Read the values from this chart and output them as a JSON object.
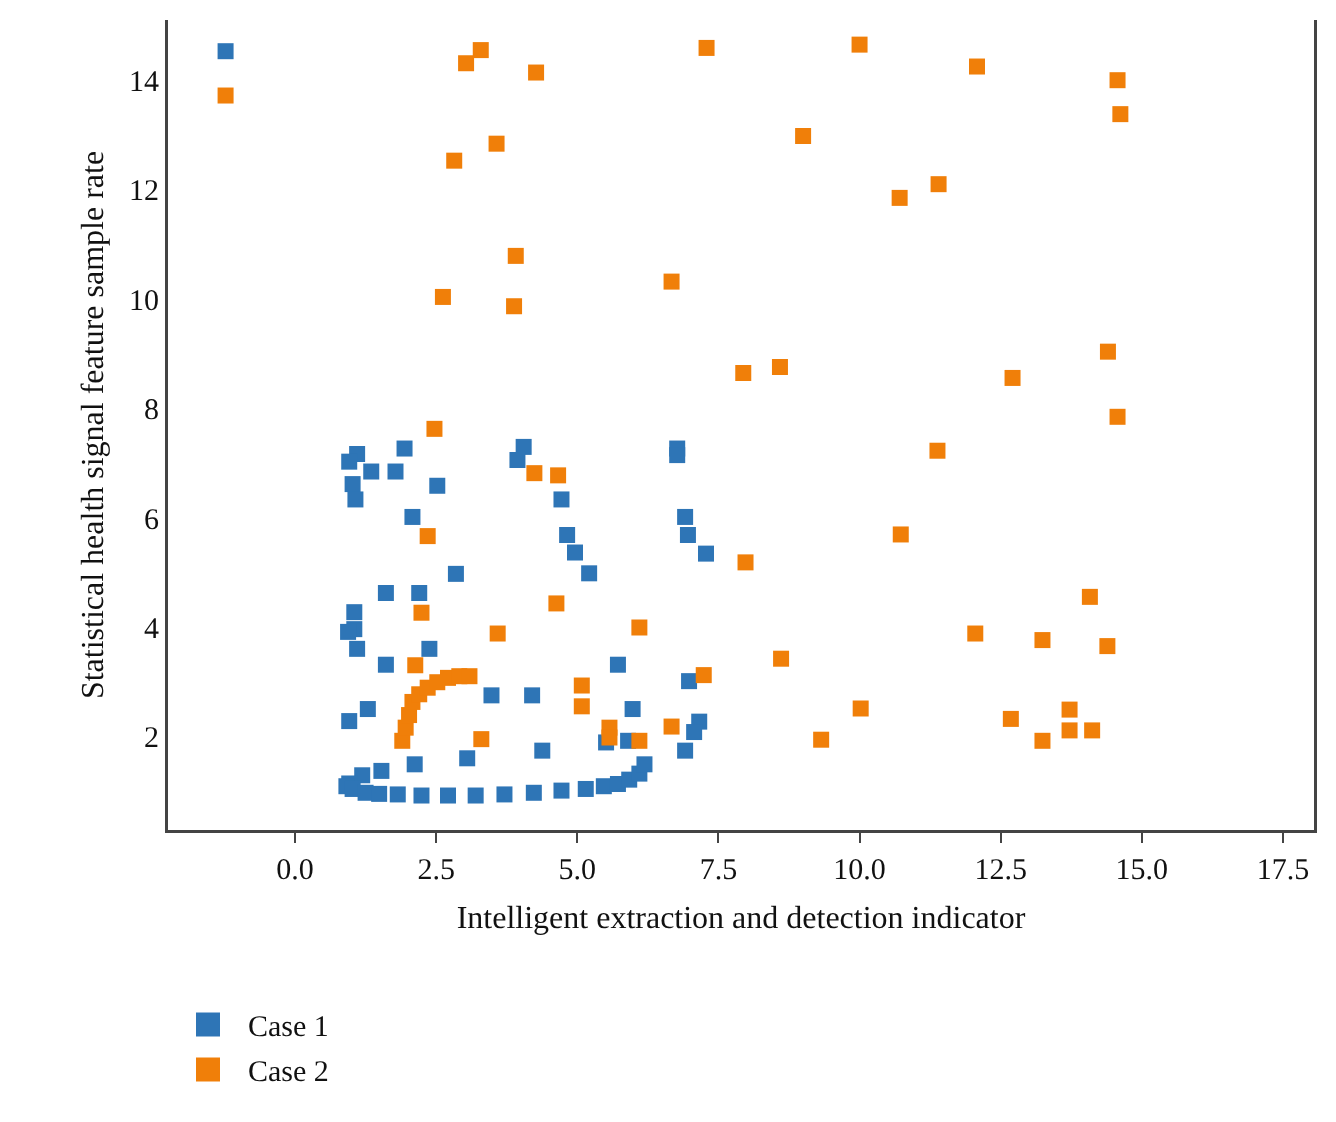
{
  "chart_data": {
    "type": "scatter",
    "xlabel": "Intelligent extraction and detection indicator",
    "ylabel": "Statistical health signal feature sample rate",
    "xlim": [
      -2.25,
      18.05
    ],
    "ylim": [
      0.3,
      15.1
    ],
    "xticks": [
      {
        "value": 0,
        "label": "0.0"
      },
      {
        "value": 2.5,
        "label": "2.5"
      },
      {
        "value": 5,
        "label": "5.0"
      },
      {
        "value": 7.5,
        "label": "7.5"
      },
      {
        "value": 10,
        "label": "10.0"
      },
      {
        "value": 12.5,
        "label": "12.5"
      },
      {
        "value": 15,
        "label": "15.0"
      },
      {
        "value": 17.5,
        "label": "17.5"
      }
    ],
    "yticks": [
      2,
      4,
      6,
      8,
      10,
      12,
      14
    ],
    "grid": false,
    "legend": "bottom left",
    "marker": "square",
    "series": [
      {
        "name": "Case 1",
        "color": "#2e75b6",
        "x": [
          -1.23,
          1.1,
          0.96,
          1.35,
          1.78,
          1.94,
          1.02,
          1.07,
          2.52,
          2.08,
          2.85,
          1.61,
          2.2,
          1.05,
          1.05,
          0.94,
          1.1,
          2.38,
          1.61,
          3.48,
          4.2,
          1.29,
          0.96,
          4.38,
          3.05,
          2.12,
          1.53,
          1.19,
          0.96,
          0.91,
          1.02,
          1.25,
          1.49,
          1.82,
          2.24,
          2.71,
          3.2,
          3.71,
          4.23,
          4.72,
          5.15,
          5.47,
          5.72,
          5.92,
          6.1,
          6.19,
          4.05,
          3.94,
          4.72,
          4.82,
          4.96,
          5.21,
          5.72,
          5.98,
          5.51,
          5.9,
          6.77,
          6.77,
          6.91,
          6.96,
          7.28,
          6.98,
          7.16,
          7.07,
          6.91
        ],
        "values": [
          14.53,
          7.17,
          7.03,
          6.85,
          6.85,
          7.27,
          6.62,
          6.34,
          6.59,
          6.02,
          4.98,
          4.63,
          4.63,
          4.28,
          3.97,
          3.92,
          3.61,
          3.61,
          3.32,
          2.76,
          2.76,
          2.51,
          2.29,
          1.75,
          1.61,
          1.5,
          1.38,
          1.3,
          1.15,
          1.1,
          1.05,
          0.98,
          0.96,
          0.95,
          0.93,
          0.93,
          0.93,
          0.95,
          0.98,
          1.02,
          1.05,
          1.1,
          1.14,
          1.22,
          1.33,
          1.5,
          7.3,
          7.06,
          6.34,
          5.69,
          5.37,
          4.99,
          3.32,
          2.51,
          1.9,
          1.93,
          7.27,
          7.15,
          6.02,
          5.69,
          5.35,
          3.02,
          2.28,
          2.09,
          1.75
        ]
      },
      {
        "name": "Case 2",
        "color": "#f07f09",
        "x": [
          -1.23,
          3.29,
          3.03,
          4.27,
          7.29,
          3.57,
          2.82,
          3.91,
          6.67,
          2.62,
          3.88,
          7.94,
          2.47,
          10.0,
          12.08,
          14.57,
          14.62,
          9.0,
          11.4,
          10.71,
          8.59,
          14.4,
          12.71,
          14.57,
          11.38,
          10.73,
          7.98,
          14.08,
          12.05,
          13.24,
          14.39,
          8.61,
          10.02,
          9.32,
          12.68,
          13.24,
          13.72,
          13.72,
          14.12,
          4.24,
          4.66,
          2.35,
          4.63,
          2.24,
          3.59,
          6.1,
          7.24,
          2.13,
          5.08,
          5.08,
          3.3,
          5.57,
          5.57,
          6.1,
          6.67,
          1.9,
          1.96,
          2.02,
          2.08,
          2.2,
          2.35,
          2.52,
          2.71,
          2.91,
          3.09
        ],
        "values": [
          13.72,
          14.55,
          14.31,
          14.14,
          14.59,
          12.84,
          12.53,
          10.79,
          10.32,
          10.04,
          9.87,
          8.65,
          7.63,
          14.65,
          14.25,
          14.0,
          13.38,
          12.98,
          12.1,
          11.85,
          8.76,
          9.04,
          8.56,
          7.85,
          7.23,
          5.7,
          5.19,
          4.56,
          3.89,
          3.77,
          3.66,
          3.43,
          2.52,
          1.95,
          2.33,
          1.93,
          2.5,
          2.12,
          2.12,
          6.82,
          6.78,
          5.67,
          4.44,
          4.27,
          3.89,
          4.0,
          3.13,
          3.31,
          2.94,
          2.56,
          1.96,
          2.17,
          1.99,
          1.93,
          2.19,
          1.93,
          2.17,
          2.4,
          2.64,
          2.78,
          2.9,
          3.0,
          3.08,
          3.11,
          3.11
        ]
      }
    ]
  }
}
